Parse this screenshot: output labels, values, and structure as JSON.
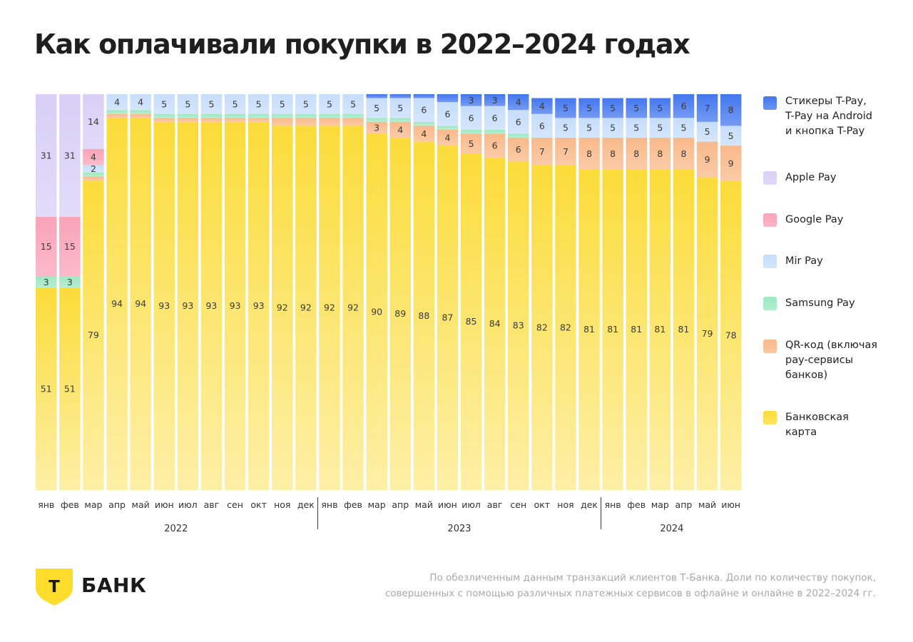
{
  "title": "Как оплачивали покупки в 2022–2024 годах",
  "chart_data": {
    "type": "bar",
    "stacked": true,
    "normalized": true,
    "categories": [
      "янв",
      "фев",
      "мар",
      "апр",
      "май",
      "июн",
      "июл",
      "авг",
      "сен",
      "окт",
      "ноя",
      "дек",
      "янв",
      "фев",
      "мар",
      "апр",
      "май",
      "июн",
      "июл",
      "авг",
      "сен",
      "окт",
      "ноя",
      "дек",
      "янв",
      "фев",
      "мар",
      "апр",
      "май",
      "июн"
    ],
    "years": [
      {
        "label": "2022",
        "months": 12
      },
      {
        "label": "2023",
        "months": 12
      },
      {
        "label": "2024",
        "months": 6
      }
    ],
    "series": [
      {
        "name": "Банковская карта",
        "color": "#fbdc3a",
        "values": [
          51,
          51,
          79,
          94,
          94,
          93,
          93,
          93,
          93,
          93,
          92,
          92,
          92,
          92,
          90,
          89,
          88,
          87,
          85,
          84,
          83,
          82,
          82,
          81,
          81,
          81,
          81,
          81,
          79,
          78
        ]
      },
      {
        "name": "QR-код (включая pay-сервисы банков)",
        "color": "#f9b98a",
        "values": [
          0,
          0,
          1,
          1,
          1,
          1,
          1,
          1,
          1,
          1,
          2,
          2,
          2,
          2,
          3,
          4,
          4,
          4,
          5,
          6,
          6,
          7,
          7,
          8,
          8,
          8,
          8,
          8,
          9,
          9
        ]
      },
      {
        "name": "Samsung Pay",
        "color": "#9ee8c2",
        "values": [
          3,
          3,
          1,
          1,
          1,
          1,
          1,
          1,
          1,
          1,
          1,
          1,
          1,
          1,
          1,
          1,
          1,
          1,
          1,
          1,
          1,
          0,
          0,
          0,
          0,
          0,
          0,
          0,
          0,
          0
        ]
      },
      {
        "name": "Mir Pay",
        "color": "#c6ddfb",
        "values": [
          0,
          0,
          2,
          4,
          4,
          5,
          5,
          5,
          5,
          5,
          5,
          5,
          5,
          5,
          5,
          5,
          6,
          6,
          6,
          6,
          6,
          6,
          5,
          5,
          5,
          5,
          5,
          5,
          5,
          5
        ]
      },
      {
        "name": "Google Pay",
        "color": "#f9a3b8",
        "values": [
          15,
          15,
          4,
          0,
          0,
          0,
          0,
          0,
          0,
          0,
          0,
          0,
          0,
          0,
          0,
          0,
          0,
          0,
          0,
          0,
          0,
          0,
          0,
          0,
          0,
          0,
          0,
          0,
          0,
          0
        ]
      },
      {
        "name": "Apple Pay",
        "color": "#d9cff7",
        "values": [
          31,
          31,
          14,
          0,
          0,
          0,
          0,
          0,
          0,
          0,
          0,
          0,
          0,
          0,
          0,
          0,
          0,
          0,
          0,
          0,
          0,
          0,
          0,
          0,
          0,
          0,
          0,
          0,
          0,
          0
        ]
      },
      {
        "name": "Стикеры T-Pay, T-Pay на Android и кнопка T-Pay",
        "color": "#4477ee",
        "values": [
          0,
          0,
          0,
          0,
          0,
          0,
          0,
          0,
          0,
          0,
          0,
          0,
          0,
          0,
          1,
          1,
          1,
          2,
          3,
          3,
          4,
          4,
          5,
          5,
          5,
          5,
          5,
          6,
          7,
          8
        ]
      }
    ],
    "labels": [
      {
        "series": "Банковская карта",
        "values": [
          51,
          51,
          79,
          94,
          94,
          93,
          93,
          93,
          93,
          93,
          92,
          92,
          92,
          92,
          90,
          89,
          88,
          87,
          85,
          84,
          83,
          82,
          82,
          81,
          81,
          81,
          81,
          81,
          79,
          78
        ]
      },
      {
        "series": "QR-код (включая pay-сервисы банков)",
        "values": [
          null,
          null,
          null,
          null,
          null,
          null,
          null,
          null,
          null,
          null,
          null,
          null,
          null,
          null,
          3,
          4,
          4,
          4,
          5,
          6,
          6,
          7,
          7,
          8,
          8,
          8,
          8,
          8,
          9,
          9
        ]
      },
      {
        "series": "Samsung Pay",
        "values": [
          3,
          3,
          null,
          null,
          null,
          null,
          null,
          null,
          null,
          null,
          null,
          null,
          null,
          null,
          null,
          null,
          null,
          null,
          null,
          null,
          null,
          null,
          null,
          null,
          null,
          null,
          null,
          null,
          null,
          null
        ]
      },
      {
        "series": "Mir Pay",
        "values": [
          null,
          null,
          2,
          4,
          4,
          5,
          5,
          5,
          5,
          5,
          5,
          5,
          5,
          5,
          5,
          5,
          6,
          6,
          6,
          6,
          6,
          6,
          5,
          5,
          5,
          5,
          5,
          5,
          5,
          5
        ]
      },
      {
        "series": "Google Pay",
        "values": [
          15,
          15,
          4,
          null,
          null,
          null,
          null,
          null,
          null,
          null,
          null,
          null,
          null,
          null,
          null,
          null,
          null,
          null,
          null,
          null,
          null,
          null,
          null,
          null,
          null,
          null,
          null,
          null,
          null,
          null
        ]
      },
      {
        "series": "Apple Pay",
        "values": [
          31,
          31,
          14,
          null,
          null,
          null,
          null,
          null,
          null,
          null,
          null,
          null,
          null,
          null,
          null,
          null,
          null,
          null,
          null,
          null,
          null,
          null,
          null,
          null,
          null,
          null,
          null,
          null,
          null,
          null
        ]
      },
      {
        "series": "Стикеры T-Pay, T-Pay на Android и кнопка T-Pay",
        "values": [
          null,
          null,
          null,
          null,
          null,
          null,
          null,
          null,
          null,
          null,
          null,
          null,
          null,
          null,
          null,
          null,
          null,
          null,
          3,
          3,
          4,
          4,
          5,
          5,
          5,
          5,
          5,
          6,
          7,
          8
        ]
      }
    ],
    "ylim": [
      0,
      100
    ],
    "grid": false,
    "legend_position": "right"
  },
  "legend": [
    {
      "label": "Стикеры T-Pay,\nT-Pay на Android\nи кнопка T-Pay",
      "color": "#4477ee",
      "icon": "square-swatch"
    },
    {
      "label": "Apple Pay",
      "color": "#d9cff7",
      "icon": "square-swatch"
    },
    {
      "label": "Google Pay",
      "color": "#f9a3b8",
      "icon": "square-swatch"
    },
    {
      "label": "Mir Pay",
      "color": "#c6ddfb",
      "icon": "square-swatch"
    },
    {
      "label": "Samsung Pay",
      "color": "#9ee8c2",
      "icon": "square-swatch"
    },
    {
      "label": "QR-код (включая\npay-сервисы\nбанков)",
      "color": "#f9b98a",
      "icon": "square-swatch"
    },
    {
      "label": "Банковская\nкарта",
      "color": "#fbdc3a",
      "icon": "square-swatch"
    }
  ],
  "brand": {
    "name": "БАНК",
    "logo_letter": "Т",
    "color": "#ffdd2d",
    "icon": "shield-logo"
  },
  "footnote": {
    "line1": "По обезличенным данным транзакций клиентов Т-Банка. Доли по количеству покупок,",
    "line2": "совершенных с помощью различных платежных сервисов в офлайне и онлайне в 2022–2024 гг."
  }
}
